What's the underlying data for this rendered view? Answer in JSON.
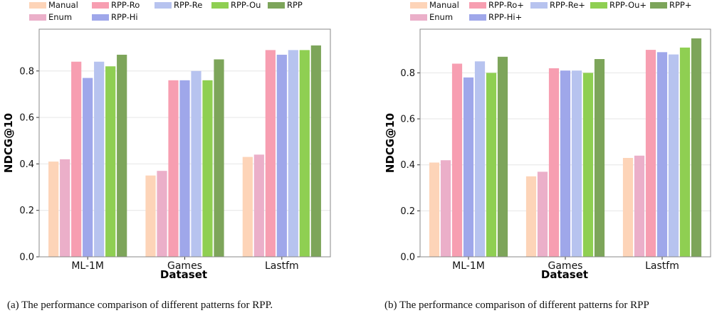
{
  "captions": [
    "(a)  The performance comparison of different patterns for RPP.",
    "(b)  The performance comparison of different patterns for RPP"
  ],
  "chart_data": [
    {
      "type": "bar",
      "categories": [
        "ML-1M",
        "Games",
        "Lastfm"
      ],
      "xlabel": "Dataset",
      "ylabel": "NDCG@10",
      "ylim": [
        0,
        0.98
      ],
      "yticks": [
        "0.0",
        "0.2",
        "0.4",
        "0.6",
        "0.8"
      ],
      "grid": true,
      "legend_position": "top",
      "series": [
        {
          "name": "Manual",
          "color": "#fdd4b8",
          "values": [
            0.41,
            0.35,
            0.43
          ]
        },
        {
          "name": "Enum",
          "color": "#ebafc9",
          "values": [
            0.42,
            0.37,
            0.44
          ]
        },
        {
          "name": "RPP-Ro",
          "color": "#f79eb1",
          "values": [
            0.84,
            0.76,
            0.89
          ]
        },
        {
          "name": "RPP-Hi",
          "color": "#9fa7ea",
          "values": [
            0.77,
            0.76,
            0.87
          ]
        },
        {
          "name": "RPP-Re",
          "color": "#b7c3ef",
          "values": [
            0.84,
            0.8,
            0.89
          ]
        },
        {
          "name": "RPP-Ou",
          "color": "#8fcf52",
          "values": [
            0.82,
            0.76,
            0.89
          ]
        },
        {
          "name": "RPP",
          "color": "#7da55a",
          "values": [
            0.87,
            0.85,
            0.91
          ]
        }
      ]
    },
    {
      "type": "bar",
      "categories": [
        "ML-1M",
        "Games",
        "Lastfm"
      ],
      "xlabel": "Dataset",
      "ylabel": "NDCG@10",
      "ylim": [
        0,
        0.99
      ],
      "yticks": [
        "0.0",
        "0.2",
        "0.4",
        "0.6",
        "0.8"
      ],
      "grid": true,
      "legend_position": "top",
      "series": [
        {
          "name": "Manual",
          "color": "#fdd4b8",
          "values": [
            0.41,
            0.35,
            0.43
          ]
        },
        {
          "name": "Enum",
          "color": "#ebafc9",
          "values": [
            0.42,
            0.37,
            0.44
          ]
        },
        {
          "name": "RPP-Ro+",
          "color": "#f79eb1",
          "values": [
            0.84,
            0.82,
            0.9
          ]
        },
        {
          "name": "RPP-Hi+",
          "color": "#9fa7ea",
          "values": [
            0.78,
            0.81,
            0.89
          ]
        },
        {
          "name": "RPP-Re+",
          "color": "#b7c3ef",
          "values": [
            0.85,
            0.81,
            0.88
          ]
        },
        {
          "name": "RPP-Ou+",
          "color": "#8fcf52",
          "values": [
            0.8,
            0.8,
            0.91
          ]
        },
        {
          "name": "RPP+",
          "color": "#7da55a",
          "values": [
            0.87,
            0.86,
            0.95
          ]
        }
      ]
    }
  ]
}
